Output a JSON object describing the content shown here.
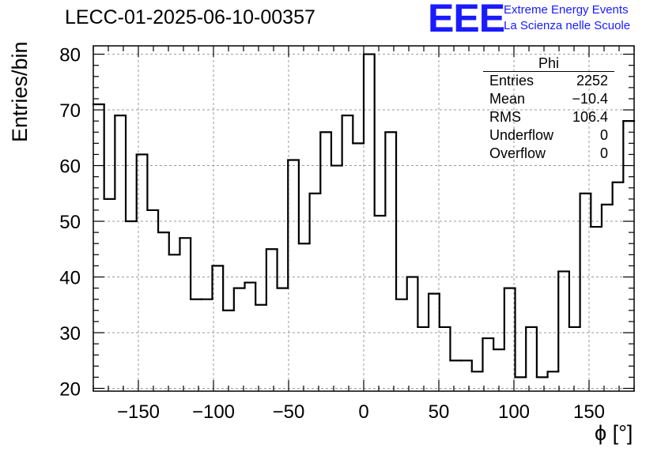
{
  "title": "LECC-01-2025-06-10-00357",
  "logo": {
    "mark": "EEE",
    "line1": "Extreme Energy Events",
    "line2": "La Scienza nelle Scuole",
    "color": "#1a1aff"
  },
  "stats": {
    "name": "Phi",
    "rows": [
      {
        "label": "Entries",
        "value": "2252"
      },
      {
        "label": "Mean",
        "value": "−10.4"
      },
      {
        "label": "RMS",
        "value": "106.4"
      },
      {
        "label": "Underflow",
        "value": "0"
      },
      {
        "label": "Overflow",
        "value": "0"
      }
    ]
  },
  "chart_data": {
    "type": "bar",
    "histogram": true,
    "xlabel": "ϕ [°]",
    "ylabel": "Entries/bin",
    "xlim": [
      -180,
      180
    ],
    "ylim": [
      19.5,
      81.5
    ],
    "bin_edges_start": -180,
    "bin_width": 7.2,
    "values": [
      71,
      54,
      69,
      50,
      62,
      52,
      48,
      44,
      47,
      36,
      36,
      42,
      34,
      38,
      39,
      35,
      45,
      38,
      61,
      46,
      55,
      66,
      60,
      69,
      64,
      80,
      51,
      66,
      36,
      40,
      31,
      37,
      31,
      25,
      25,
      23,
      29,
      27,
      38,
      22,
      31,
      22,
      23,
      41,
      31,
      55,
      49,
      53,
      57,
      68
    ],
    "xticks": [
      -150,
      -100,
      -50,
      0,
      50,
      100,
      150
    ],
    "yticks": [
      20,
      30,
      40,
      50,
      60,
      70,
      80
    ],
    "grid": true,
    "line_color": "#000000"
  }
}
